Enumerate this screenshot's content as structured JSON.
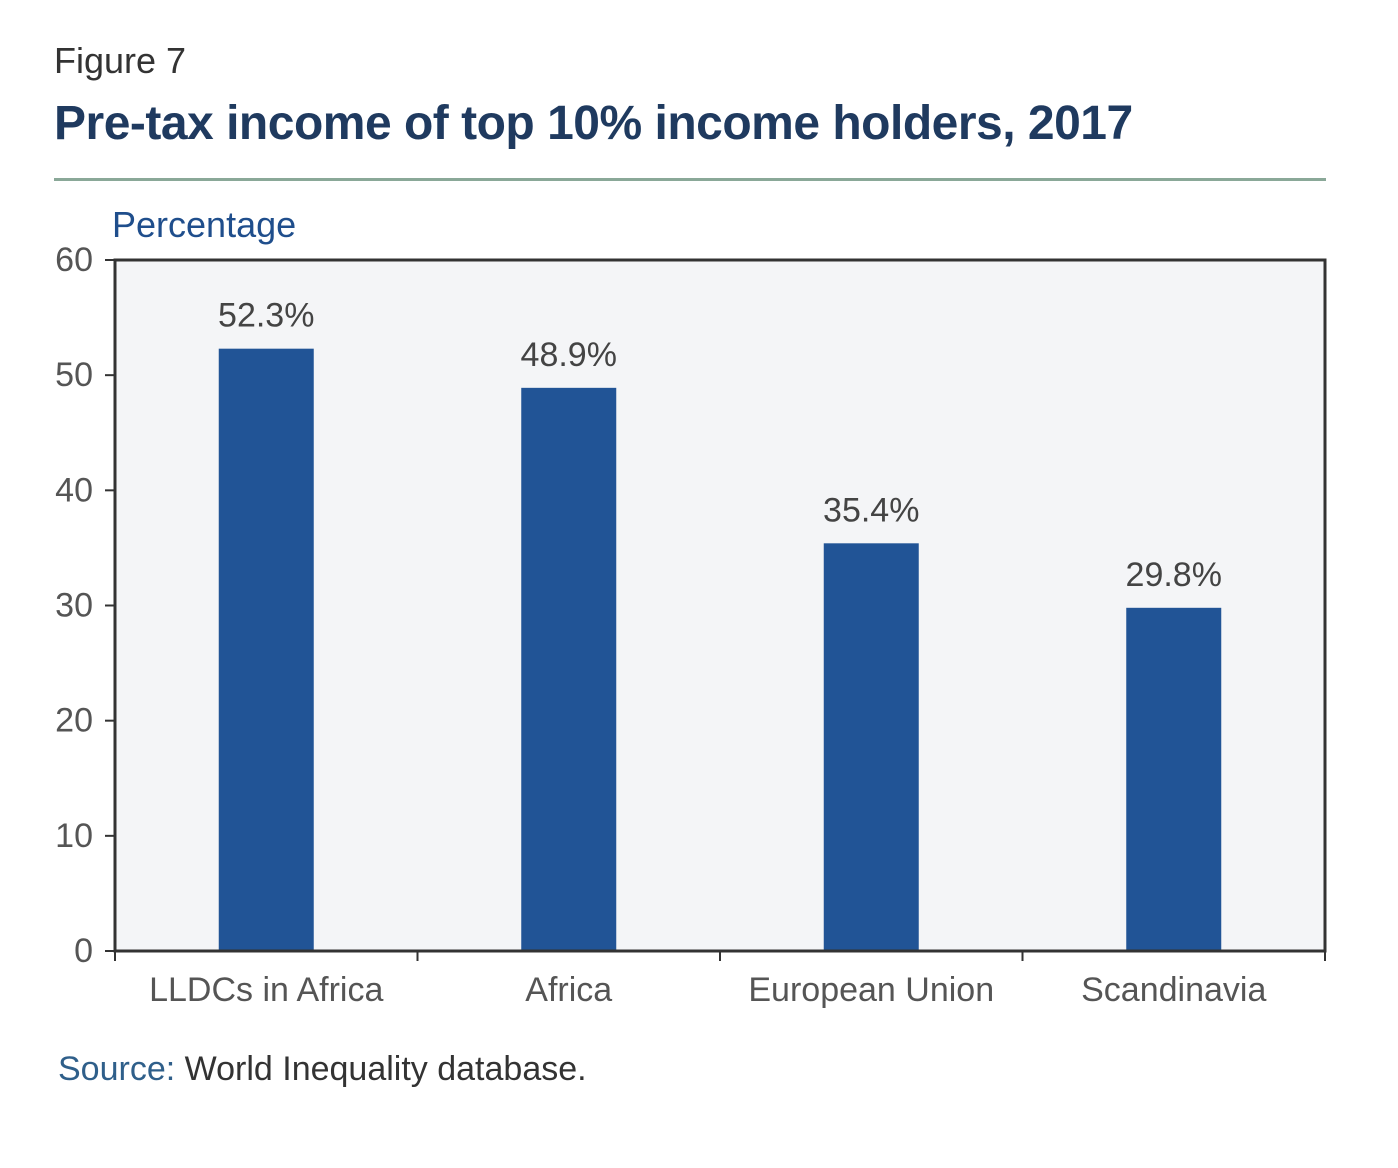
{
  "figure_label": "Figure 7",
  "title": "Pre-tax income of top 10% income holders, 2017",
  "source": {
    "label": "Source:",
    "text": " World Inequality database."
  },
  "colors": {
    "bar": "#215496",
    "plot_bg": "#f4f5f7",
    "axis": "#333333",
    "title": "#1f3a5f"
  },
  "chart_data": {
    "type": "bar",
    "ylabel": "Percentage",
    "xlabel": "",
    "ylim": [
      0,
      60
    ],
    "yticks": [
      0,
      10,
      20,
      30,
      40,
      50,
      60
    ],
    "categories": [
      "LLDCs in Africa",
      "Africa",
      "European Union",
      "Scandinavia"
    ],
    "values": [
      52.3,
      48.9,
      35.4,
      29.8
    ],
    "value_labels": [
      "52.3%",
      "48.9%",
      "35.4%",
      "29.8%"
    ],
    "grid": false,
    "legend": "none"
  }
}
